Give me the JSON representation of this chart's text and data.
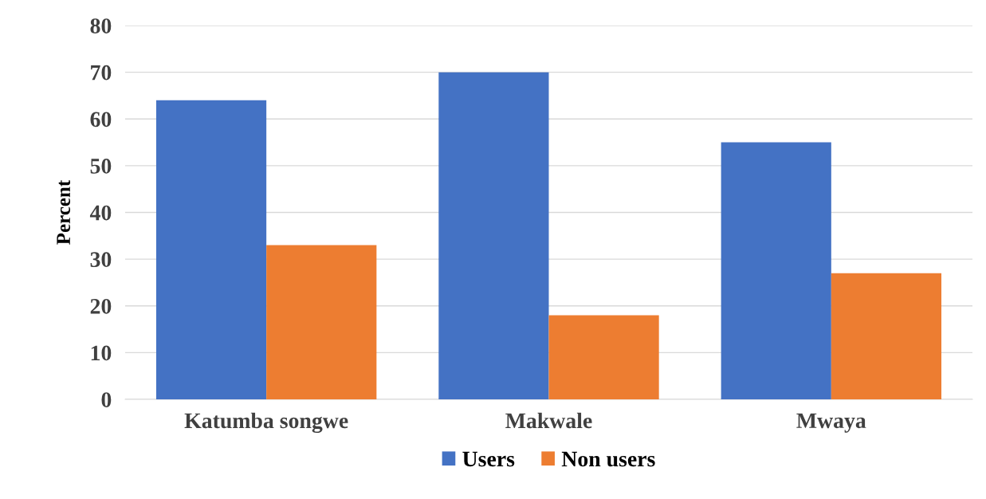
{
  "chart_data": {
    "type": "bar",
    "ylabel": "Percent",
    "categories": [
      "Katumba songwe",
      "Makwale",
      "Mwaya"
    ],
    "series": [
      {
        "name": "Users",
        "color": "#4472c4",
        "values": [
          64,
          70,
          55
        ]
      },
      {
        "name": "Non users",
        "color": "#ed7d31",
        "values": [
          33,
          18,
          27
        ]
      }
    ],
    "ylim": [
      0,
      80
    ],
    "yticks": [
      0,
      10,
      20,
      30,
      40,
      50,
      60,
      70,
      80
    ],
    "grid": "y",
    "legend": "bottom"
  }
}
